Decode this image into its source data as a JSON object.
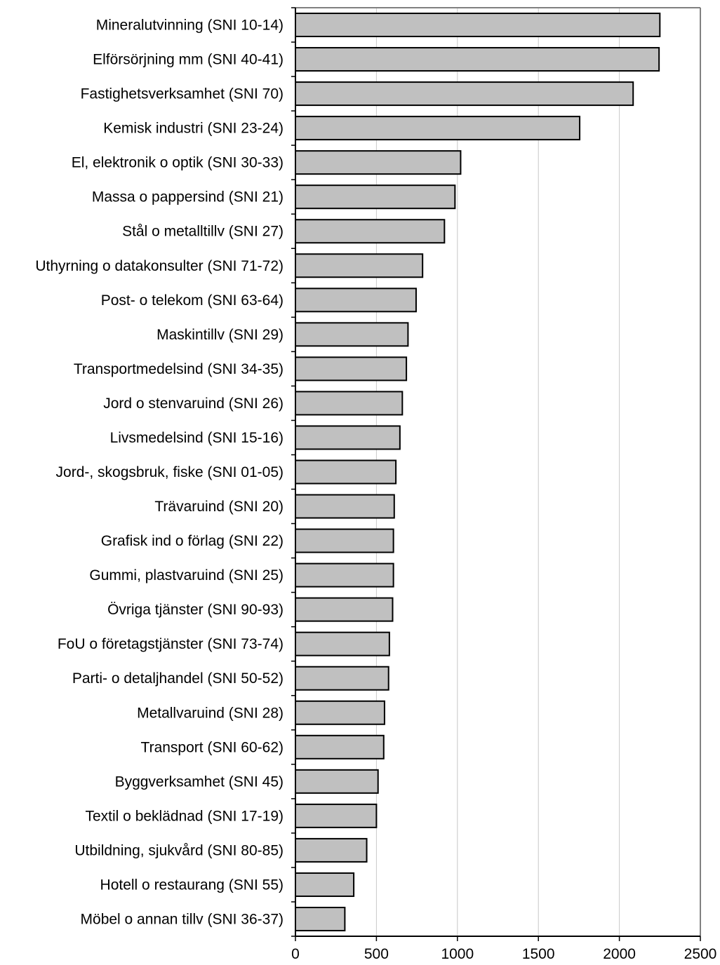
{
  "chart_data": {
    "type": "bar",
    "orientation": "horizontal",
    "title": "",
    "xlabel": "",
    "ylabel": "",
    "categories": [
      "Mineralutvinning (SNI 10-14)",
      "Elförsörjning mm (SNI 40-41)",
      "Fastighetsverksamhet (SNI 70)",
      "Kemisk industri (SNI 23-24)",
      "El, elektronik o optik (SNI 30-33)",
      "Massa o pappersind (SNI 21)",
      "Stål o metalltillv (SNI 27)",
      "Uthyrning o datakonsulter (SNI 71-72)",
      "Post- o telekom (SNI 63-64)",
      "Maskintillv (SNI 29)",
      "Transportmedelsind (SNI 34-35)",
      "Jord o stenvaruind (SNI 26)",
      "Livsmedelsind (SNI 15-16)",
      "Jord-, skogsbruk, fiske (SNI 01-05)",
      "Trävaruind (SNI 20)",
      "Grafisk ind o förlag (SNI 22)",
      "Gummi, plastvaruind (SNI 25)",
      "Övriga tjänster (SNI 90-93)",
      "FoU o företagstjänster (SNI 73-74)",
      "Parti- o detaljhandel (SNI 50-52)",
      "Metallvaruind (SNI 28)",
      "Transport (SNI 60-62)",
      "Byggverksamhet (SNI 45)",
      "Textil o beklädnad (SNI 17-19)",
      "Utbildning, sjukvård (SNI 80-85)",
      "Hotell o restaurang (SNI 55)",
      "Möbel o annan tillv (SNI 36-37)"
    ],
    "values": [
      2250,
      2245,
      2085,
      1755,
      1020,
      985,
      920,
      785,
      745,
      695,
      685,
      660,
      645,
      620,
      610,
      605,
      605,
      600,
      580,
      575,
      550,
      545,
      510,
      500,
      440,
      360,
      305
    ],
    "xlim": [
      0,
      2500
    ],
    "xticks": [
      0,
      500,
      1000,
      1500,
      2000,
      2500
    ],
    "grid": "vertical",
    "legend": "none",
    "bar_color": "#c0c0c0",
    "bar_edge_color": "#000000",
    "grid_color": "#c8c8c8",
    "frame_color": "#808080"
  }
}
